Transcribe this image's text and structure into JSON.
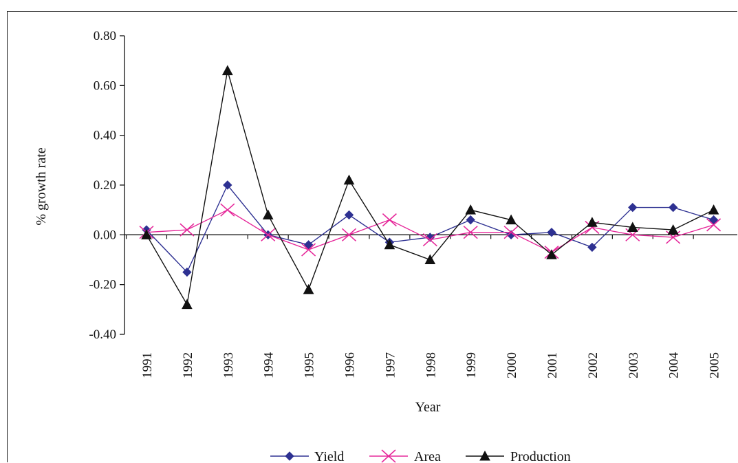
{
  "chart_data": {
    "type": "line",
    "xlabel": "Year",
    "ylabel": "% growth rate",
    "categories": [
      "1991",
      "1992",
      "1993",
      "1994",
      "1995",
      "1996",
      "1997",
      "1998",
      "1999",
      "2000",
      "2001",
      "2002",
      "2003",
      "2004",
      "2005"
    ],
    "ylim": [
      -0.4,
      0.8
    ],
    "yticks": [
      "0.80",
      "0.60",
      "0.40",
      "0.20",
      "0.00",
      "-0.20",
      "-0.40"
    ],
    "ytick_values": [
      0.8,
      0.6,
      0.4,
      0.2,
      0.0,
      -0.2,
      -0.4
    ],
    "grid": false,
    "legend_position": "bottom",
    "series": [
      {
        "name": "Yield",
        "color": "#2e3192",
        "marker": "diamond",
        "values": [
          0.02,
          -0.15,
          0.2,
          0.0,
          -0.04,
          0.08,
          -0.03,
          -0.01,
          0.06,
          0.0,
          0.01,
          -0.05,
          0.11,
          0.11,
          0.06
        ]
      },
      {
        "name": "Area",
        "color": "#e6289a",
        "marker": "x",
        "values": [
          0.01,
          0.02,
          0.1,
          0.0,
          -0.06,
          0.0,
          0.06,
          -0.02,
          0.01,
          0.01,
          -0.07,
          0.03,
          0.0,
          -0.01,
          0.04
        ]
      },
      {
        "name": "Production",
        "color": "#111111",
        "marker": "triangle",
        "values": [
          0.0,
          -0.28,
          0.66,
          0.08,
          -0.22,
          0.22,
          -0.04,
          -0.1,
          0.1,
          0.06,
          -0.08,
          0.05,
          0.03,
          0.02,
          0.1
        ]
      }
    ]
  }
}
